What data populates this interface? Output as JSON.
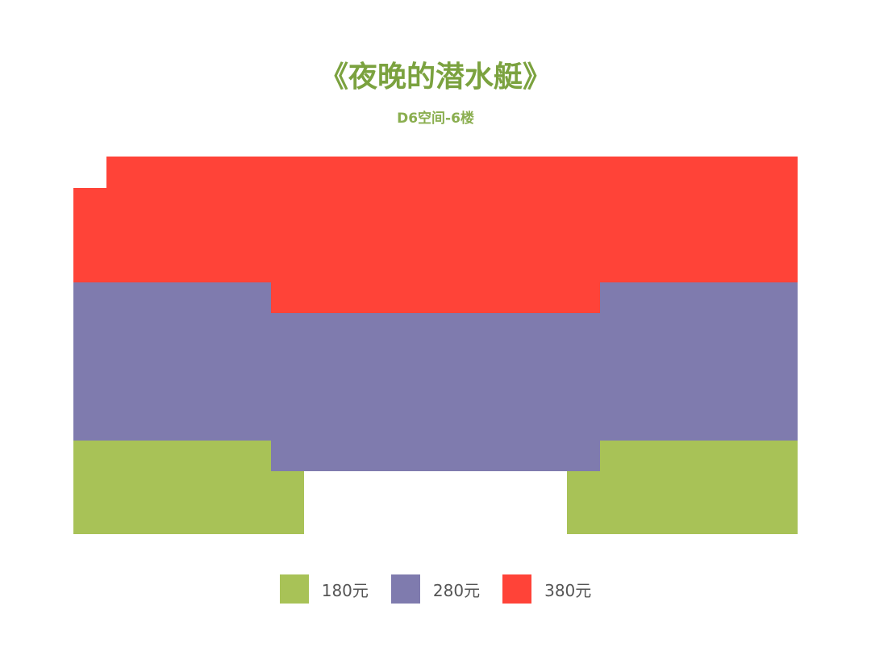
{
  "title": "《夜晚的潜水艇》",
  "subtitle": "D6空间-6楼",
  "zones": [
    {
      "name": "380元",
      "color": "#ff4338"
    },
    {
      "name": "280元",
      "color": "#7f7bae"
    },
    {
      "name": "180元",
      "color": "#a8c257"
    }
  ],
  "legend": [
    {
      "label": "180元",
      "color": "#a8c257"
    },
    {
      "label": "280元",
      "color": "#7f7bae"
    },
    {
      "label": "380元",
      "color": "#ff4338"
    }
  ]
}
